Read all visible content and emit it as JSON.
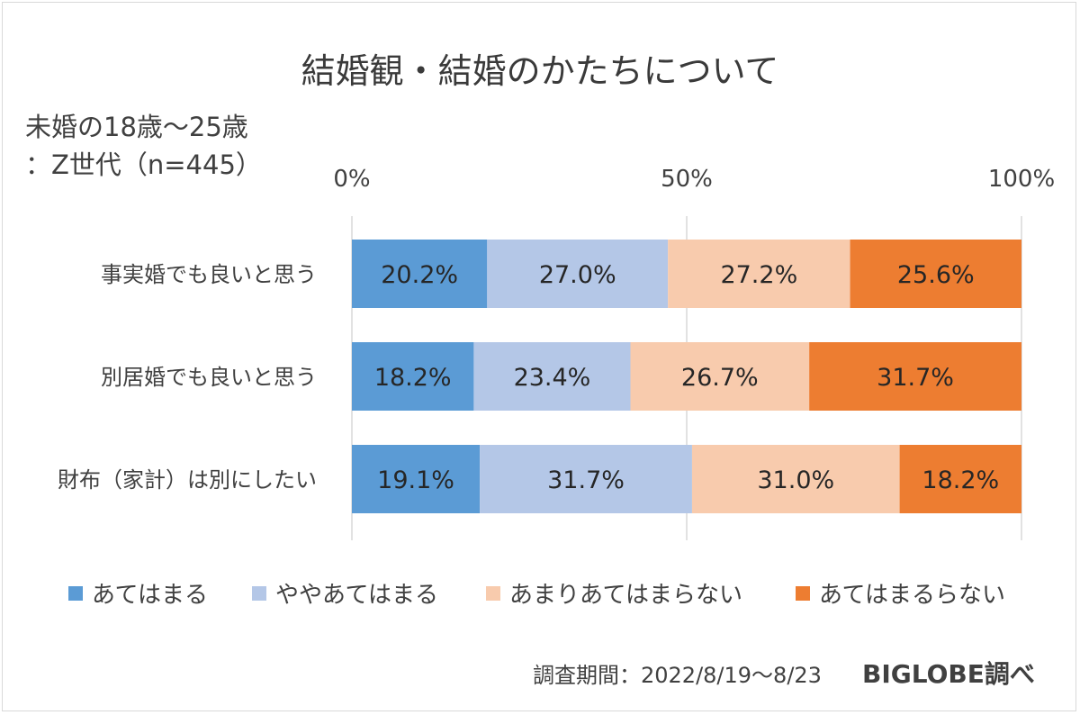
{
  "title": "結婚観・結婚のかたちについて",
  "subtitle": {
    "line1": "未婚の18歳～25歳",
    "line2": "：Z世代（n=445）"
  },
  "footer": {
    "period": "調査期間：2022/8/19～8/23",
    "credit": "BIGLOBE調べ"
  },
  "colors": {
    "series": [
      "#5b9bd5",
      "#b4c7e7",
      "#f8cbad",
      "#ed7d31"
    ],
    "gridline": "#d9d9d9",
    "text": "#404040"
  },
  "chart_data": {
    "type": "bar",
    "orientation": "horizontal",
    "stacked": "percent",
    "categories": [
      "事実婚でも良いと思う",
      "別居婚でも良いと思う",
      "財布（家計）は別にしたい"
    ],
    "series": [
      {
        "name": "あてはまる",
        "values": [
          20.2,
          18.2,
          19.1
        ],
        "labels": [
          "20.2%",
          "18.2%",
          "19.1%"
        ]
      },
      {
        "name": "ややあてはまる",
        "values": [
          27.0,
          23.4,
          31.7
        ],
        "labels": [
          "27.0%",
          "23.4%",
          "31.7%"
        ]
      },
      {
        "name": "あまりあてはまらない",
        "values": [
          27.2,
          26.7,
          31.0
        ],
        "labels": [
          "27.2%",
          "26.7%",
          "31.0%"
        ]
      },
      {
        "name": "あてはまるらない",
        "values": [
          25.6,
          31.7,
          18.2
        ],
        "labels": [
          "25.6%",
          "31.7%",
          "18.2%"
        ]
      }
    ],
    "xlim": [
      0,
      100
    ],
    "ticks": [
      0,
      50,
      100
    ],
    "tick_labels": [
      "0%",
      "50%",
      "100%"
    ],
    "grid": true,
    "legend_position": "bottom"
  }
}
